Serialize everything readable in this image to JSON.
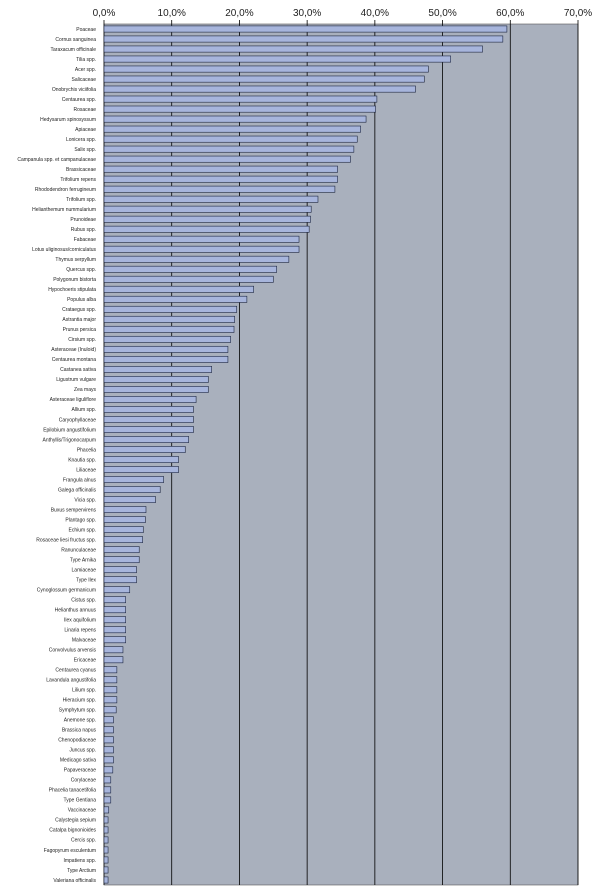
{
  "chart_data": {
    "type": "bar",
    "orientation": "horizontal",
    "xlim": [
      0,
      70
    ],
    "x_tick_labels": [
      "0,0%",
      "10,0%",
      "20,0%",
      "30,0%",
      "40,0%",
      "50,0%",
      "60,0%",
      "70,0%"
    ],
    "x_ticks": [
      0,
      10,
      20,
      30,
      40,
      50,
      60,
      70
    ],
    "grid": true,
    "x_axis_position": "top",
    "colors": {
      "plot_bg": "#a9b0bd",
      "bar_fill": "#a7b5dc",
      "bar_stroke": "#1c2540",
      "grid": "#000000"
    },
    "categories": [
      "Poaceae",
      "Cornus sanguinea",
      "Taraxacum officinale",
      "Tilia spp.",
      "Acer spp.",
      "Salicaceae",
      "Onobrychis viciifolia",
      "Centaurea spp.",
      "Rosaceae",
      "Hedysarum spinosyssum",
      "Apiaceae",
      "Lonicera spp.",
      "Salix spp.",
      "Campanula spp. et campanulaceae",
      "Brassicaceae",
      "Trifolium repens",
      "Rhododendron ferrugineum",
      "Trifolium spp.",
      "Helianthemum nummularium",
      "Prunoideae",
      "Rubus spp.",
      "Fabaceae",
      "Lotus uliginosus/corniculatus",
      "Thymus serpyllum",
      "Quercus spp.",
      "Polygonum bistorta",
      "Hypochoeris stipulata",
      "Populus alba",
      "Crataegus spp.",
      "Astrantia major",
      "Prunus persica",
      "Cirsium spp.",
      "Asteraceae (Inuloid)",
      "Centaurea montana",
      "Castanea sativa",
      "Ligustrum vulgare",
      "Zea mays",
      "Asteraceae liguliflore",
      "Allium spp.",
      "Caryophyllaceae",
      "Epilobium angustifolium",
      "Anthyllis/Trigonocarpum",
      "Phacelia",
      "Knautia spp.",
      "Liliaceae",
      "Frangula alnus",
      "Galega officinalis",
      "Vicia spp.",
      "Buxus sempervirens",
      "Plantago spp.",
      "Echium spp.",
      "Rosaceae liesi fructus spp.",
      "Ranunculaceae",
      "Type Arnika",
      "Lamiaceae",
      "Type Ilex",
      "Cynoglossum germanicum",
      "Cistus spp.",
      "Helianthus annuus",
      "Ilex aquifolium",
      "Linaria repens",
      "Malvaceae",
      "Convolvulus arvensis",
      "Ericaceae",
      "Centaurea cyanus",
      "Lavandula angustifolia",
      "Lilium spp.",
      "Hieracium spp.",
      "Symphytum spp.",
      "Anemone spp.",
      "Brassica napus",
      "Chenopodiaceae",
      "Juncus spp.",
      "Medicago sativa",
      "Papaveraceae",
      "Corylaceae",
      "Phacelia tanacetifolia",
      "Type Gentiana",
      "Vaccinaceae",
      "Calystegia sepium",
      "Catalpa bignonioides",
      "Cercis spp.",
      "Fagopyrum esculentum",
      "Impatiens spp.",
      "Type Arctium",
      "Valeriana officinalis"
    ],
    "values": [
      59.5,
      58.9,
      55.9,
      51.2,
      47.9,
      47.3,
      46.0,
      40.3,
      40.1,
      38.7,
      37.9,
      37.4,
      36.9,
      36.4,
      34.5,
      34.5,
      34.1,
      31.6,
      30.6,
      30.5,
      30.3,
      28.8,
      28.8,
      27.3,
      25.5,
      25.0,
      22.1,
      21.1,
      19.6,
      19.3,
      19.2,
      18.7,
      18.3,
      18.3,
      15.9,
      15.4,
      15.4,
      13.6,
      13.2,
      13.2,
      13.2,
      12.5,
      12.0,
      11.0,
      11.0,
      8.8,
      8.3,
      7.6,
      6.2,
      6.1,
      5.8,
      5.7,
      5.2,
      5.2,
      4.8,
      4.8,
      3.8,
      3.2,
      3.2,
      3.2,
      3.2,
      3.2,
      2.8,
      2.8,
      1.9,
      1.9,
      1.9,
      1.9,
      1.8,
      1.4,
      1.4,
      1.4,
      1.4,
      1.4,
      1.3,
      1.0,
      1.0,
      1.0,
      0.7,
      0.6,
      0.6,
      0.6,
      0.6,
      0.6,
      0.6,
      0.6
    ]
  }
}
